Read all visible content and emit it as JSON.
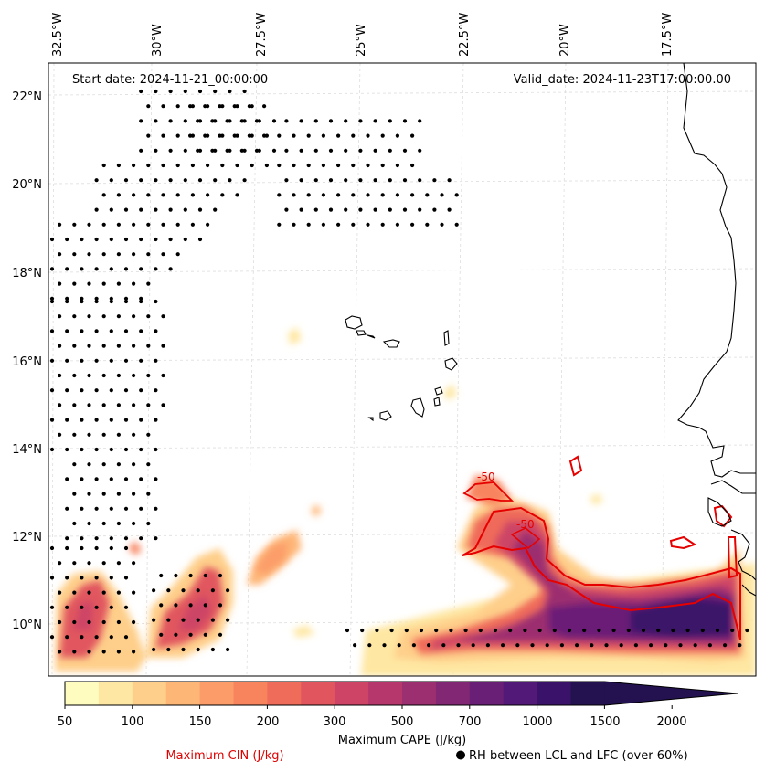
{
  "map": {
    "start_date": "Start date: 2024-11-21_00:00:00",
    "valid_date": "Valid_date: 2024-11-23T17:00:00.00",
    "lon_labels": [
      "32.5°W",
      "30°W",
      "27.5°W",
      "25°W",
      "22.5°W",
      "20°W",
      "17.5°W"
    ],
    "lat_labels": [
      "22°N",
      "20°N",
      "18°N",
      "16°N",
      "14°N",
      "12°N",
      "10°N"
    ],
    "cin_contour_label": "-50"
  },
  "colorbar": {
    "tick_labels": [
      "50",
      "100",
      "150",
      "200",
      "300",
      "500",
      "700",
      "1000",
      "1500",
      "2000"
    ],
    "label": "Maximum CAPE (J/kg)",
    "colors": [
      "#fffcc0",
      "#fee7a2",
      "#fecf8a",
      "#feb677",
      "#fc9d69",
      "#f8845e",
      "#ef6b5a",
      "#e1565e",
      "#cd4466",
      "#b5376c",
      "#9c2f70",
      "#822773",
      "#6a1f77",
      "#521978",
      "#3a1269",
      "#231150"
    ]
  },
  "legend": {
    "cin_label": "Maximum CIN (J/kg)",
    "rh_label": "RH between LCL and LFC (over 60%)",
    "cin_color": "#e00000"
  }
}
